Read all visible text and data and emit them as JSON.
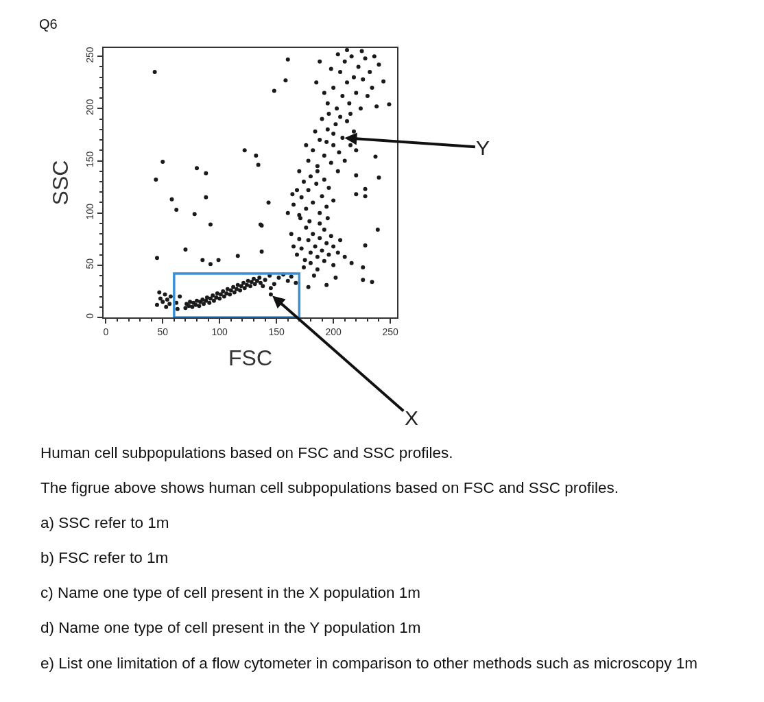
{
  "chart_data": {
    "type": "scatter",
    "title": "Q6",
    "xlabel": "FSC",
    "ylabel": "SSC",
    "marker": "circle",
    "xlim": [
      -2,
      256
    ],
    "ylim": [
      0,
      258
    ],
    "xticks": [
      0,
      {
        "value": 10,
        "label": null
      },
      {
        "value": 20,
        "label": null
      },
      {
        "value": 30,
        "label": null
      },
      {
        "value": 40,
        "label": null
      },
      50,
      {
        "value": 60,
        "label": null
      },
      {
        "value": 70,
        "label": null
      },
      {
        "value": 80,
        "label": null
      },
      {
        "value": 90,
        "label": null
      },
      100,
      {
        "value": 110,
        "label": null
      },
      {
        "value": 120,
        "label": null
      },
      {
        "value": 130,
        "label": null
      },
      {
        "value": 140,
        "label": null
      },
      150,
      {
        "value": 160,
        "label": null
      },
      {
        "value": 170,
        "label": null
      },
      {
        "value": 180,
        "label": null
      },
      {
        "value": 190,
        "label": null
      },
      200,
      {
        "value": 210,
        "label": null
      },
      {
        "value": 220,
        "label": null
      },
      {
        "value": 230,
        "label": null
      },
      {
        "value": 240,
        "label": null
      },
      250
    ],
    "yticks": [
      0,
      {
        "value": 10,
        "label": null
      },
      {
        "value": 20,
        "label": null
      },
      {
        "value": 30,
        "label": null
      },
      {
        "value": 40,
        "label": null
      },
      50,
      {
        "value": 60,
        "label": null
      },
      {
        "value": 70,
        "label": null
      },
      {
        "value": 80,
        "label": null
      },
      {
        "value": 90,
        "label": null
      },
      100,
      {
        "value": 110,
        "label": null
      },
      {
        "value": 120,
        "label": null
      },
      {
        "value": 130,
        "label": null
      },
      {
        "value": 140,
        "label": null
      },
      150,
      {
        "value": 160,
        "label": null
      },
      {
        "value": 170,
        "label": null
      },
      {
        "value": 180,
        "label": null
      },
      {
        "value": 190,
        "label": null
      },
      200,
      {
        "value": 210,
        "label": null
      },
      {
        "value": 220,
        "label": null
      },
      {
        "value": 230,
        "label": null
      },
      {
        "value": 240,
        "label": null
      },
      250
    ],
    "series": [
      {
        "color": "#1a1a1a",
        "x": [
          70,
          71,
          73,
          74,
          76,
          77,
          79,
          80,
          82,
          83,
          85,
          86,
          88,
          89,
          91,
          92,
          94,
          95,
          97,
          98,
          100,
          101,
          103,
          104,
          106,
          107,
          109,
          110,
          112,
          113,
          115,
          116,
          118,
          119,
          121,
          122,
          124,
          125,
          127,
          128,
          130,
          131,
          133,
          135,
          136,
          45,
          48,
          50,
          52,
          54,
          56,
          57,
          47,
          53,
          62,
          65,
          63,
          140,
          144,
          148,
          152,
          156,
          160,
          163,
          167,
          138,
          145,
          145
        ],
        "values": [
          9,
          13,
          11,
          15,
          10,
          14,
          12,
          16,
          11,
          15,
          17,
          13,
          16,
          19,
          14,
          18,
          21,
          16,
          19,
          23,
          18,
          22,
          25,
          20,
          23,
          27,
          22,
          26,
          29,
          24,
          27,
          31,
          26,
          30,
          33,
          28,
          31,
          35,
          30,
          34,
          37,
          32,
          35,
          38,
          33,
          12,
          18,
          15,
          22,
          17,
          13,
          20,
          24,
          10,
          14,
          20,
          8,
          36,
          40,
          32,
          38,
          41,
          35,
          39,
          33,
          30,
          28,
          22
        ]
      },
      {
        "color": "#1a1a1a",
        "x": [
          168,
          172,
          175,
          178,
          180,
          182,
          184,
          186,
          188,
          190,
          192,
          194,
          196,
          198,
          176,
          170,
          174,
          180,
          186,
          192,
          200,
          204,
          206,
          210,
          165,
          163,
          179,
          188,
          195,
          171,
          183,
          200,
          160,
          165,
          170,
          172,
          176,
          178,
          182,
          185,
          188,
          190,
          194,
          196,
          168,
          174,
          180,
          200,
          164,
          186,
          192,
          170,
          178,
          182,
          186,
          188,
          192,
          195,
          198,
          200,
          202,
          205,
          208,
          210,
          212,
          215,
          184,
          190,
          196,
          204,
          218,
          176,
          200,
          206,
          194,
          220,
          195,
          200,
          203,
          206,
          208,
          210,
          212,
          214,
          216,
          218,
          220,
          222,
          224,
          226,
          228,
          230,
          198,
          204,
          212,
          232,
          236,
          192,
          215,
          225,
          240,
          185,
          188,
          234
        ],
        "values": [
          60,
          66,
          55,
          74,
          62,
          80,
          68,
          58,
          76,
          64,
          84,
          71,
          60,
          78,
          86,
          75,
          48,
          52,
          46,
          54,
          68,
          62,
          74,
          58,
          68,
          80,
          92,
          90,
          95,
          95,
          40,
          50,
          100,
          108,
          98,
          115,
          104,
          122,
          110,
          128,
          100,
          116,
          106,
          124,
          122,
          130,
          135,
          112,
          118,
          140,
          132,
          140,
          150,
          160,
          145,
          170,
          155,
          180,
          148,
          165,
          185,
          158,
          172,
          150,
          188,
          165,
          178,
          190,
          195,
          140,
          178,
          165,
          176,
          192,
          168,
          160,
          205,
          220,
          200,
          235,
          212,
          245,
          225,
          205,
          250,
          230,
          215,
          240,
          200,
          228,
          248,
          212,
          238,
          252,
          256,
          235,
          250,
          215,
          195,
          255,
          242,
          225,
          245,
          220
        ]
      },
      {
        "color": "#1a1a1a",
        "x": [
          43,
          50,
          44,
          58,
          62,
          80,
          88,
          88,
          78,
          92,
          70,
          45,
          85,
          99,
          92,
          116,
          137,
          137,
          239,
          228,
          226,
          234,
          226,
          216,
          202,
          194,
          178,
          148,
          158,
          160,
          132,
          122,
          134,
          143,
          136,
          244,
          249,
          238,
          237,
          220,
          228,
          228,
          220,
          240
        ],
        "values": [
          235,
          149,
          132,
          113,
          103,
          143,
          138,
          115,
          99,
          89,
          65,
          57,
          55,
          55,
          51,
          59,
          63,
          88,
          84,
          69,
          48,
          34,
          36,
          52,
          38,
          31,
          29,
          217,
          227,
          247,
          155,
          160,
          146,
          110,
          89,
          226,
          204,
          202,
          154,
          136,
          123,
          116,
          118,
          134
        ]
      },
      {
        "type": "line",
        "marker": "none",
        "color": "#3a8fd2",
        "x": [
          60,
          60,
          170,
          170
        ],
        "values": [
          0,
          42,
          42,
          0
        ]
      },
      {
        "type": "line",
        "marker": "none",
        "color": "#3a8fd2",
        "x": [
          60,
          170
        ],
        "values": [
          0,
          0
        ]
      }
    ],
    "annotations": [
      {
        "text": "X",
        "x": 145,
        "y": 22
      },
      {
        "text": "Y",
        "x": 208,
        "y": 172
      },
      "Human cell subpopulations based on FSC and SSC profiles.",
      "The figrue above shows human cell subpopulations based on FSC and SSC profiles.",
      "a) SSC refer to 1m",
      "b) FSC refer to 1m",
      "c) Name one type of cell present in the X population 1m",
      "d) Name one type of cell present in the Y population 1m",
      "e) List one limitation of a flow cytometer in comparison to other methods such as microscopy 1m"
    ]
  }
}
